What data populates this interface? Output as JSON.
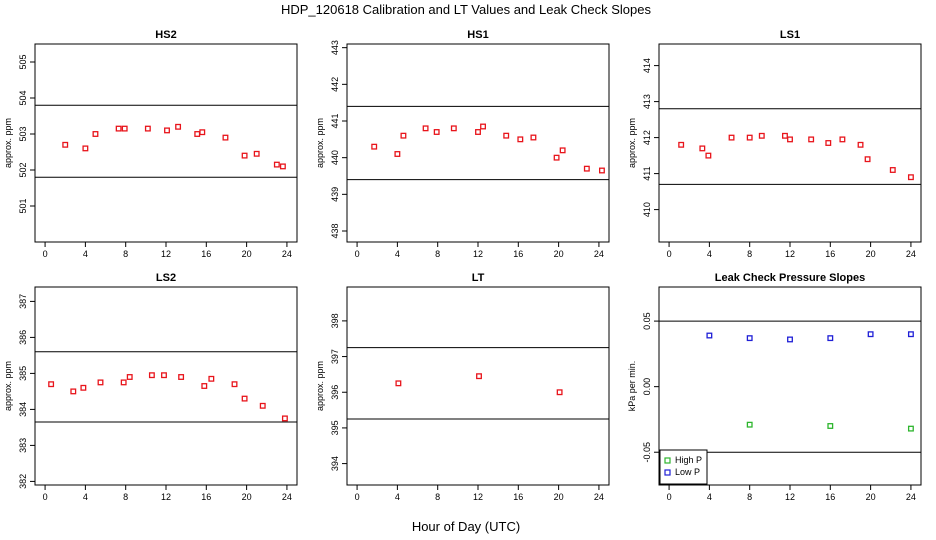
{
  "figure": {
    "title": "HDP_120618  Calibration and LT Values and Leak Check Slopes",
    "xlabel": "Hour of Day (UTC)"
  },
  "colors": {
    "calibration_marker": "#e8141b",
    "high_p": "#2db52d",
    "low_p": "#1f1fd6"
  },
  "chart_data": [
    {
      "type": "scatter",
      "title": "HS2",
      "ylabel": "approx. ppm",
      "xlim": [
        -1,
        25
      ],
      "ylim": [
        500,
        505.5
      ],
      "xticks": [
        "0",
        "4",
        "8",
        "12",
        "16",
        "20",
        "24"
      ],
      "yticks": [
        "501",
        "502",
        "503",
        "504",
        "505"
      ],
      "hlines": [
        501.8,
        503.8
      ],
      "series": [
        {
          "x": [
            2,
            4,
            5,
            7.3,
            7.9,
            10.2,
            12.1,
            13.2,
            15.1,
            15.6,
            17.9,
            19.8,
            21,
            23,
            23.6
          ],
          "y": [
            502.7,
            502.6,
            503,
            503.15,
            503.15,
            503.15,
            503.1,
            503.2,
            503,
            503.05,
            502.9,
            502.4,
            502.45,
            502.15,
            502.1
          ]
        }
      ]
    },
    {
      "type": "scatter",
      "title": "HS1",
      "ylabel": "approx. ppm",
      "xlim": [
        -1,
        25
      ],
      "ylim": [
        437.7,
        443.1
      ],
      "xticks": [
        "0",
        "4",
        "8",
        "12",
        "16",
        "20",
        "24"
      ],
      "yticks": [
        "438",
        "439",
        "440",
        "441",
        "442",
        "443"
      ],
      "hlines": [
        439.4,
        441.4
      ],
      "series": [
        {
          "x": [
            1.7,
            4,
            4.6,
            6.8,
            7.9,
            9.6,
            12,
            12.5,
            14.8,
            16.2,
            17.5,
            19.8,
            20.4,
            22.8,
            24.3
          ],
          "y": [
            440.3,
            440.1,
            440.6,
            440.8,
            440.7,
            440.8,
            440.7,
            440.85,
            440.6,
            440.5,
            440.55,
            440,
            440.2,
            439.7,
            439.65
          ]
        }
      ]
    },
    {
      "type": "scatter",
      "title": "LS1",
      "ylabel": "approx. ppm",
      "xlim": [
        -1,
        25
      ],
      "ylim": [
        409.1,
        414.6
      ],
      "xticks": [
        "0",
        "4",
        "8",
        "12",
        "16",
        "20",
        "24"
      ],
      "yticks": [
        "410",
        "411",
        "412",
        "413",
        "414"
      ],
      "hlines": [
        410.7,
        412.8
      ],
      "series": [
        {
          "x": [
            1.2,
            3.3,
            3.9,
            6.2,
            8,
            9.2,
            11.5,
            12,
            14.1,
            15.8,
            17.2,
            19,
            19.7,
            22.2,
            24
          ],
          "y": [
            411.8,
            411.7,
            411.5,
            412,
            412,
            412.05,
            412.05,
            411.95,
            411.95,
            411.85,
            411.95,
            411.8,
            411.4,
            411.1,
            410.9
          ]
        }
      ]
    },
    {
      "type": "scatter",
      "title": "LS2",
      "ylabel": "approx. ppm",
      "xlim": [
        -1,
        25
      ],
      "ylim": [
        381.9,
        387.4
      ],
      "xticks": [
        "0",
        "4",
        "8",
        "12",
        "16",
        "20",
        "24"
      ],
      "yticks": [
        "382",
        "383",
        "384",
        "385",
        "386",
        "387"
      ],
      "hlines": [
        383.65,
        385.6
      ],
      "series": [
        {
          "x": [
            0.6,
            2.8,
            3.8,
            5.5,
            7.8,
            8.4,
            10.6,
            11.8,
            13.5,
            15.8,
            16.5,
            18.8,
            19.8,
            21.6,
            23.8
          ],
          "y": [
            384.7,
            384.5,
            384.6,
            384.75,
            384.75,
            384.9,
            384.95,
            384.95,
            384.9,
            384.65,
            384.85,
            384.7,
            384.3,
            384.1,
            383.75
          ]
        }
      ]
    },
    {
      "type": "scatter",
      "title": "LT",
      "ylabel": "approx. ppm",
      "xlim": [
        -1,
        25
      ],
      "ylim": [
        393.4,
        398.95
      ],
      "xticks": [
        "0",
        "4",
        "8",
        "12",
        "16",
        "20",
        "24"
      ],
      "yticks": [
        "394",
        "395",
        "396",
        "397",
        "398"
      ],
      "hlines": [
        395.25,
        397.25
      ],
      "series": [
        {
          "x": [
            4.1,
            12.1,
            20.1
          ],
          "y": [
            396.25,
            396.45,
            396
          ]
        }
      ]
    },
    {
      "type": "scatter",
      "title": "Leak Check Pressure Slopes",
      "ylabel": "kPa per min.",
      "xlim": [
        -1,
        25
      ],
      "ylim": [
        -0.075,
        0.076
      ],
      "xticks": [
        "0",
        "4",
        "8",
        "12",
        "16",
        "20",
        "24"
      ],
      "yticks": [
        "-0.05",
        "0.00",
        "0.05"
      ],
      "hlines": [
        -0.05,
        0.05
      ],
      "legend": "bottom-left",
      "series": [
        {
          "name": "High P",
          "x": [
            8,
            16,
            24
          ],
          "y": [
            -0.029,
            -0.03,
            -0.032
          ]
        },
        {
          "name": "Low P",
          "x": [
            4,
            8,
            12,
            16,
            20,
            24
          ],
          "y": [
            0.039,
            0.037,
            0.036,
            0.037,
            0.04,
            0.04
          ]
        }
      ]
    }
  ]
}
